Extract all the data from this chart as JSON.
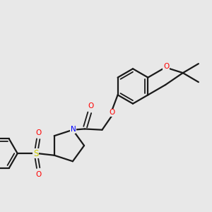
{
  "background_color": "#e8e8e8",
  "bond_color": "#1a1a1a",
  "atom_colors": {
    "O": "#ff0000",
    "N": "#0000ff",
    "S": "#cccc00",
    "C": "#1a1a1a"
  },
  "figsize": [
    3.0,
    3.0
  ],
  "dpi": 100
}
